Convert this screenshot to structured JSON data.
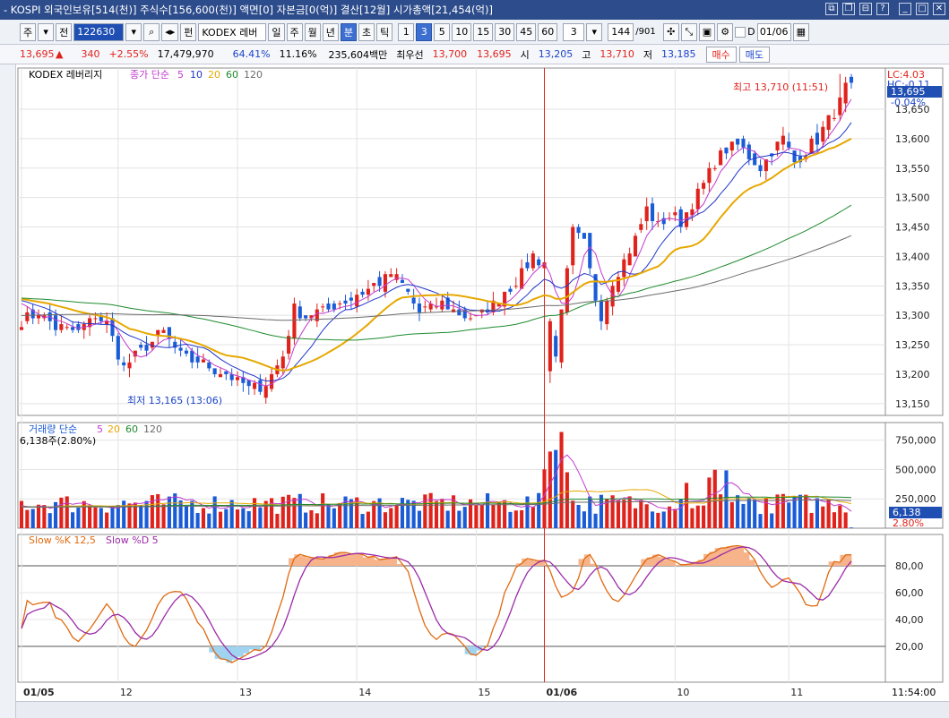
{
  "window": {
    "title": "- KOSPI 외국인보유[514(천)] 주식수[156,600(천)] 액면[0] 자본금[0(억)] 결산[12월] 시가총액[21,454(억)]",
    "icons": [
      "restore-icon",
      "copy-icon",
      "link-icon",
      "help-icon",
      "minimize-icon",
      "maximize-icon",
      "close-icon"
    ]
  },
  "toolbar": {
    "type1": "주",
    "type2": "전",
    "code": "122630",
    "search_icon": "search-icon",
    "sound_icon": "speaker-icon",
    "pen": "펀",
    "name": "KODEX 레버",
    "periods": [
      "일",
      "주",
      "월",
      "년",
      "분",
      "초",
      "틱"
    ],
    "active_period": "분",
    "intervals": [
      "1",
      "3",
      "5",
      "10",
      "15",
      "30",
      "45",
      "60"
    ],
    "active_interval": "3",
    "count_select": "3",
    "bar_count": "144",
    "bar_total": "/901",
    "date": "01/06"
  },
  "quote": {
    "price": "13,695",
    "arrow": "▲",
    "change": "340",
    "change_pct": "+2.55%",
    "volume": "17,479,970",
    "ratio1": "64.41%",
    "ratio2": "11.16%",
    "amount": "235,604백만",
    "best_ask_label": "최우선",
    "best_ask": "13,700",
    "best_bid": "13,695",
    "open_label": "시",
    "open": "13,205",
    "high_label": "고",
    "high": "13,710",
    "low_label": "저",
    "low": "13,185",
    "buy_label": "매수",
    "sell_label": "매도"
  },
  "panels": {
    "price_label": "KODEX 레버리지",
    "ma_label": "종가 단순",
    "ma_periods": [
      "5",
      "10",
      "20",
      "60",
      "120"
    ],
    "vol_label": "거래량 단순",
    "vol_periods": [
      "5",
      "20",
      "60",
      "120"
    ],
    "vol_current": "6,138주(2.80%)",
    "stoch_k": "Slow %K 12,5",
    "stoch_d": "Slow %D 5",
    "lc_label": "LC:4.03",
    "hc_label": "HC:-0.11",
    "price_tag": "13,695",
    "price_tag_pct": "-0.04%",
    "vol_tag": "6,138",
    "vol_tag_pct": "2.80%",
    "high_note": "최고 13,710 (11:51)",
    "low_note": "최저 13,165 (13:06)",
    "time_label": "11:54:00"
  },
  "chart_data": {
    "type": "candlestick",
    "price_axis": [
      "13,650",
      "13,600",
      "13,550",
      "13,500",
      "13,450",
      "13,400",
      "13,350",
      "13,300",
      "13,250",
      "13,200",
      "13,150"
    ],
    "price_range": [
      13130,
      13720
    ],
    "volume_axis": [
      "750,000",
      "500,000",
      "250,000"
    ],
    "stoch_axis": [
      "80,00",
      "60,00",
      "40,00",
      "20,00"
    ],
    "x_labels": [
      "01/05",
      "12",
      "13",
      "14",
      "15",
      "01/06",
      "10",
      "11"
    ],
    "anchors": [
      [
        0,
        13290
      ],
      [
        3,
        13305
      ],
      [
        6,
        13280
      ],
      [
        10,
        13270
      ],
      [
        13,
        13300
      ],
      [
        15,
        13285
      ],
      [
        18,
        13210
      ],
      [
        22,
        13250
      ],
      [
        25,
        13270
      ],
      [
        28,
        13230
      ],
      [
        32,
        13220
      ],
      [
        36,
        13200
      ],
      [
        40,
        13175
      ],
      [
        43,
        13185
      ],
      [
        46,
        13230
      ],
      [
        48,
        13310
      ],
      [
        50,
        13300
      ],
      [
        54,
        13310
      ],
      [
        58,
        13330
      ],
      [
        62,
        13350
      ],
      [
        65,
        13370
      ],
      [
        67,
        13350
      ],
      [
        70,
        13305
      ],
      [
        74,
        13320
      ],
      [
        78,
        13300
      ],
      [
        80,
        13295
      ],
      [
        83,
        13320
      ],
      [
        86,
        13350
      ],
      [
        88,
        13370
      ],
      [
        90,
        13400
      ],
      [
        92,
        13390
      ],
      [
        93,
        13270
      ],
      [
        94,
        13240
      ],
      [
        95,
        13300
      ],
      [
        97,
        13440
      ],
      [
        99,
        13420
      ],
      [
        101,
        13330
      ],
      [
        102,
        13300
      ],
      [
        104,
        13360
      ],
      [
        106,
        13390
      ],
      [
        108,
        13430
      ],
      [
        110,
        13480
      ],
      [
        112,
        13450
      ],
      [
        114,
        13470
      ],
      [
        116,
        13460
      ],
      [
        118,
        13490
      ],
      [
        120,
        13520
      ],
      [
        122,
        13560
      ],
      [
        124,
        13580
      ],
      [
        126,
        13590
      ],
      [
        128,
        13570
      ],
      [
        130,
        13550
      ],
      [
        132,
        13580
      ],
      [
        134,
        13600
      ],
      [
        136,
        13560
      ],
      [
        138,
        13580
      ],
      [
        140,
        13600
      ],
      [
        142,
        13630
      ],
      [
        144,
        13660
      ],
      [
        146,
        13710
      ]
    ],
    "ma_colors": {
      "ma5": "#c23bd0",
      "ma10": "#1f36c8",
      "ma20": "#e6a800",
      "ma60": "#1e8a2e",
      "ma120": "#6b6b6b"
    },
    "up_color": "#e0221c",
    "down_color": "#1a5bd6"
  }
}
